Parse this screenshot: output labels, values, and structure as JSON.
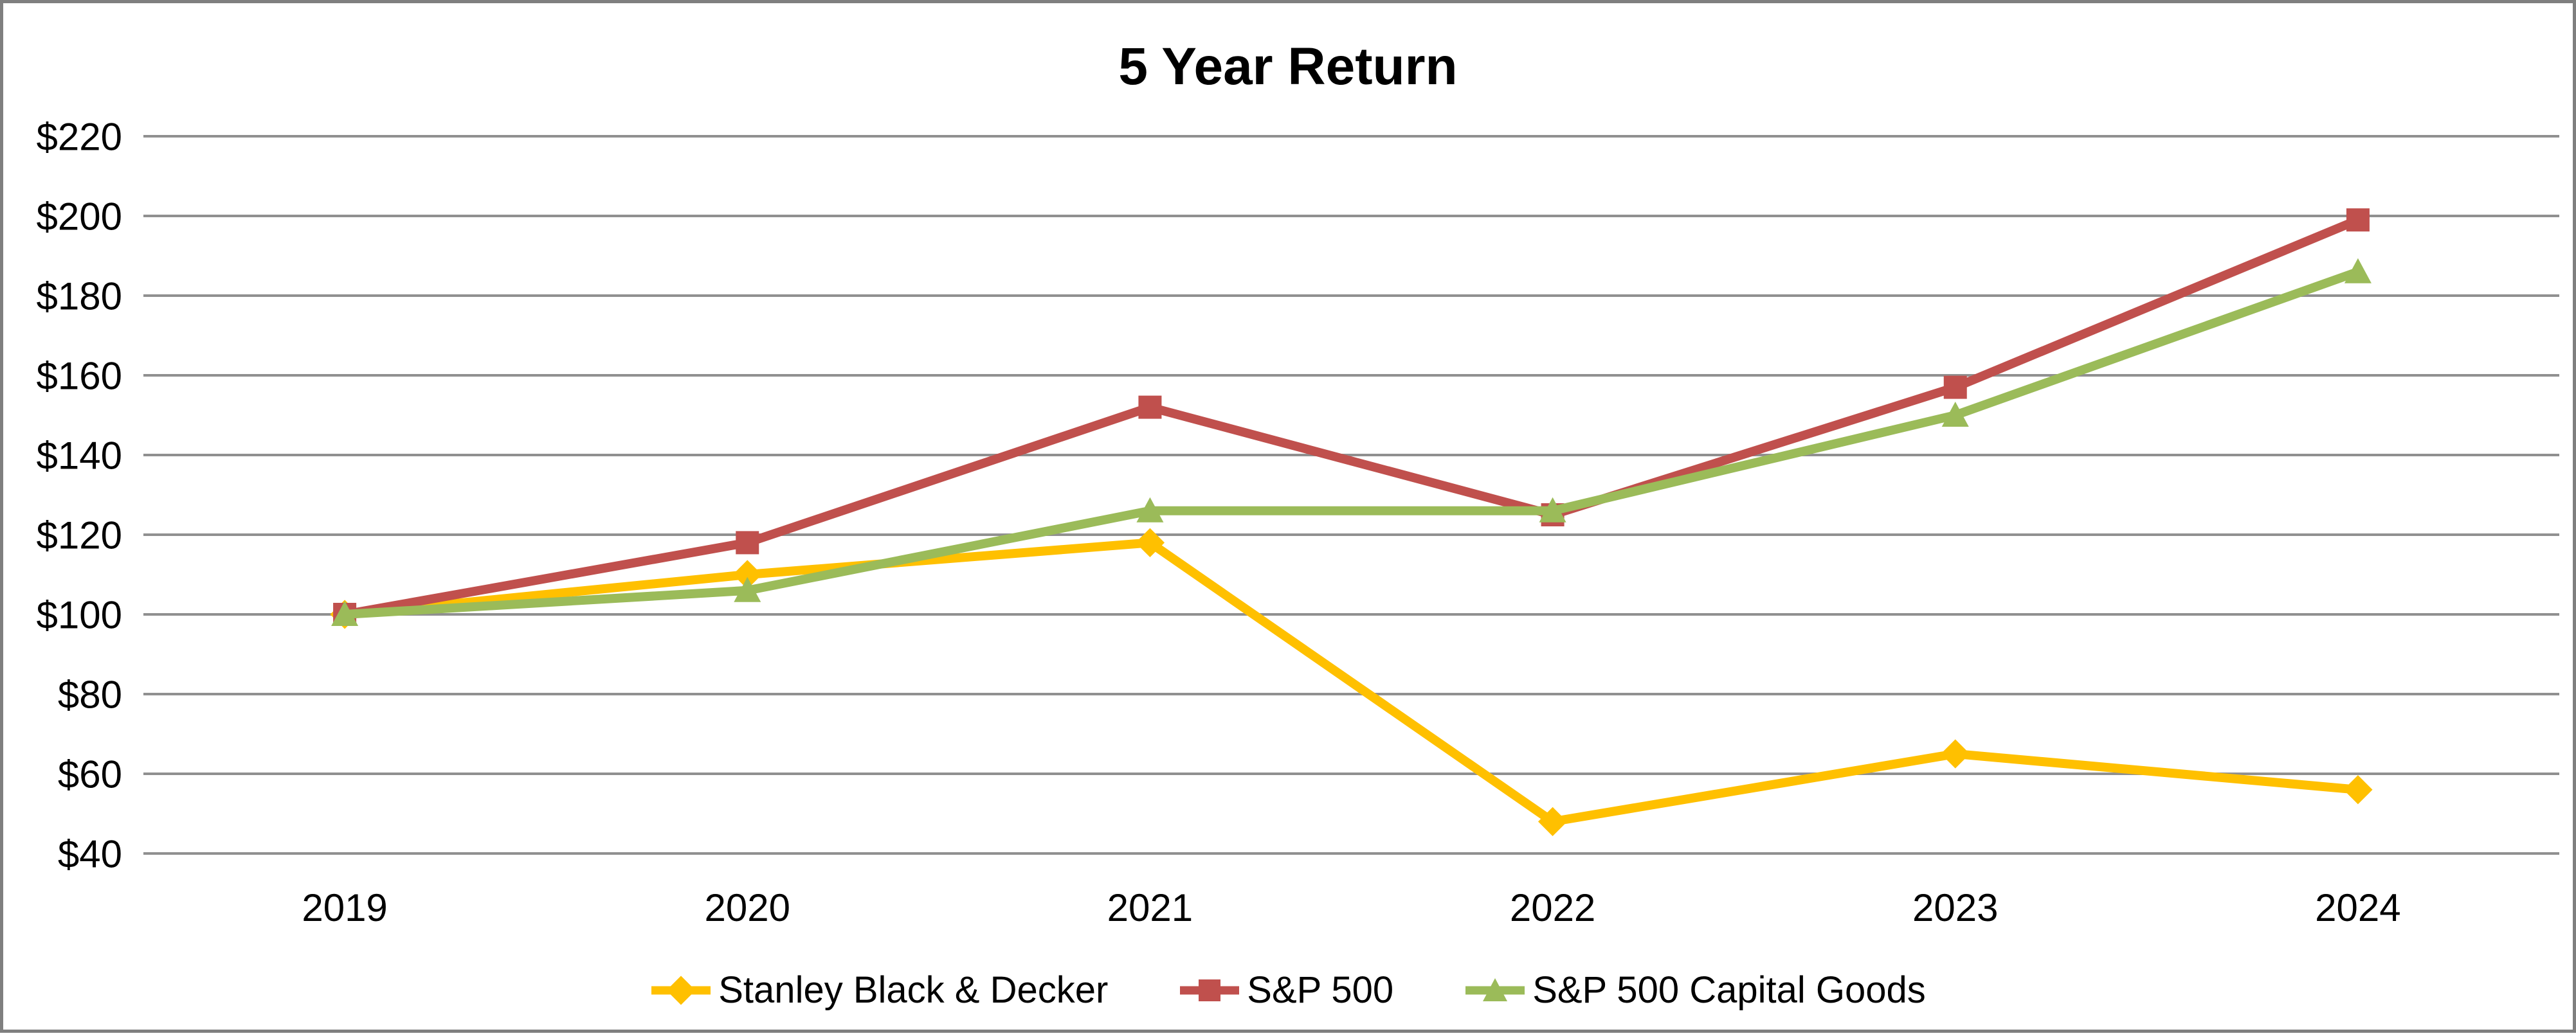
{
  "chart_data": {
    "type": "line",
    "title": "5 Year Return",
    "categories": [
      "2019",
      "2020",
      "2021",
      "2022",
      "2023",
      "2024"
    ],
    "series": [
      {
        "name": "Stanley Black & Decker",
        "marker": "diamond",
        "color": "#FFC000",
        "values": [
          100,
          110,
          118,
          48,
          65,
          56
        ]
      },
      {
        "name": "S&P 500",
        "marker": "square",
        "color": "#C0504D",
        "values": [
          100,
          118,
          152,
          125,
          157,
          199
        ]
      },
      {
        "name": "S&P 500 Capital Goods",
        "marker": "triangle",
        "color": "#9BBB59",
        "values": [
          100,
          106,
          126,
          126,
          150,
          186
        ]
      }
    ],
    "y_axis": {
      "min": 40,
      "max": 220,
      "step": 20,
      "tick_labels": [
        "$220",
        "$200",
        "$180",
        "$160",
        "$140",
        "$120",
        "$100",
        "$80",
        "$60",
        "$40"
      ]
    },
    "grid": true,
    "legend_position": "bottom",
    "colors": {
      "gridline": "#909090",
      "frame_border": "#7f7f7f",
      "text": "#000000",
      "background": "#ffffff"
    }
  }
}
